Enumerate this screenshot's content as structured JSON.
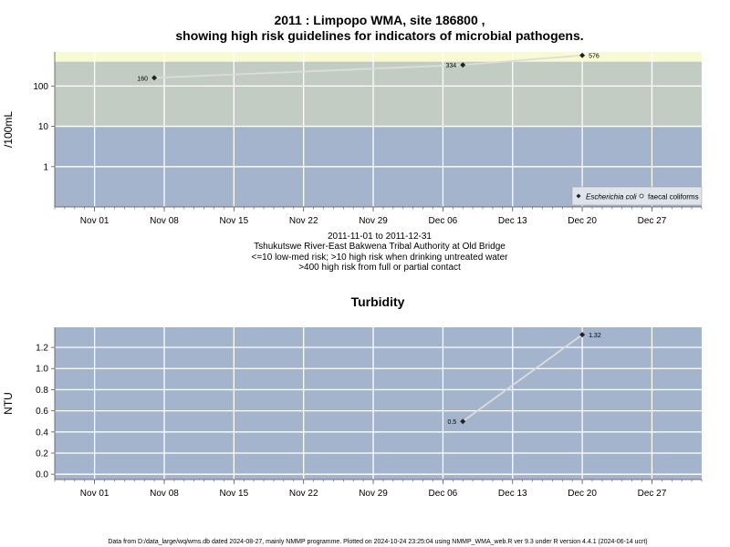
{
  "colors": {
    "band_low": "#a3b4cc",
    "band_mid": "#c3ccc3",
    "band_high": "#fafad2",
    "grid": "#ffffff",
    "line": "#dcdcdc",
    "point": "#222222",
    "axis": "#555555"
  },
  "top": {
    "title_line1": "2011 : Limpopo WMA, site 186800 ,",
    "title_line2": "showing high risk guidelines for indicators of microbial pathogens.",
    "caption_lines": [
      "2011-11-01 to 2011-12-31",
      "Tshukutswe River-East Bakwena Tribal Authority at Old Bridge",
      "<=10 low-med risk; >10 high risk when drinking untreated water",
      ">400 high risk from full or partial contact"
    ],
    "legend": {
      "ecoli": "Escherichia coli",
      "fc": "faecal coliforms"
    }
  },
  "bottom": {
    "title": "Turbidity"
  },
  "footer": "Data from D:/data_large/wq/wms.db dated 2024-08-27, mainly NMMP programme. Plotted on 2024-10-24 23:25:04 using NMMP_WMA_web.R ver 9.3 under R version 4.4.1 (2024-06-14 ucrt)",
  "chart_data": [
    {
      "type": "scatter",
      "ylabel": "/100mL",
      "y_scale": "log10",
      "ylim": [
        0.1,
        700
      ],
      "xlim": [
        "2011-10-28",
        "2012-01-01"
      ],
      "yticks": [
        1,
        10,
        100
      ],
      "ytick_labels": [
        "1",
        "10",
        "100"
      ],
      "xtick_labels": [
        "Nov 01",
        "Nov 08",
        "Nov 15",
        "Nov 22",
        "Nov 29",
        "Dec 06",
        "Dec 13",
        "Dec 20",
        "Dec 27"
      ],
      "xticks": [
        "2011-11-01",
        "2011-11-08",
        "2011-11-15",
        "2011-11-22",
        "2011-11-29",
        "2011-12-06",
        "2011-12-13",
        "2011-12-20",
        "2011-12-27"
      ],
      "bands": [
        {
          "from": 0.1,
          "to": 10,
          "color": "#a3b4cc"
        },
        {
          "from": 10,
          "to": 400,
          "color": "#c3ccc3"
        },
        {
          "from": 400,
          "to": 700,
          "color": "#fafad2"
        }
      ],
      "legend_position": "bottom-right",
      "grid": true,
      "series": [
        {
          "name": "Escherichia coli",
          "x": [
            "2011-11-07",
            "2011-12-08",
            "2011-12-20"
          ],
          "y": [
            160,
            334,
            576
          ],
          "labels": [
            "160",
            "334",
            "576"
          ]
        }
      ]
    },
    {
      "type": "line",
      "title": "Turbidity",
      "ylabel": "NTU",
      "ylim": [
        -0.05,
        1.39
      ],
      "xlim": [
        "2011-10-28",
        "2012-01-01"
      ],
      "yticks": [
        0,
        0.2,
        0.4,
        0.6,
        0.8,
        1.0,
        1.2
      ],
      "ytick_labels": [
        "0.0",
        "0.2",
        "0.4",
        "0.6",
        "0.8",
        "1.0",
        "1.2"
      ],
      "xtick_labels": [
        "Nov 01",
        "Nov 08",
        "Nov 15",
        "Nov 22",
        "Nov 29",
        "Dec 06",
        "Dec 13",
        "Dec 20",
        "Dec 27"
      ],
      "xticks": [
        "2011-11-01",
        "2011-11-08",
        "2011-11-15",
        "2011-11-22",
        "2011-11-29",
        "2011-12-06",
        "2011-12-13",
        "2011-12-20",
        "2011-12-27"
      ],
      "grid": true,
      "series": [
        {
          "x": [
            "2011-12-08",
            "2011-12-20"
          ],
          "y": [
            0.5,
            1.32
          ],
          "labels": [
            "0.5",
            "1.32"
          ]
        }
      ]
    }
  ]
}
